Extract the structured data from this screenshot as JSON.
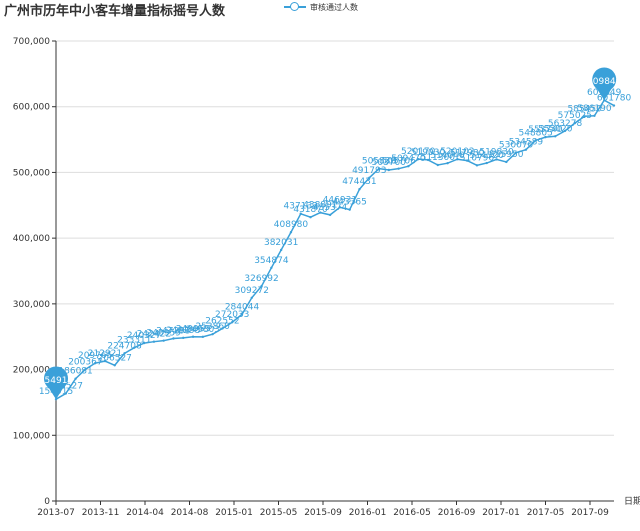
{
  "title": "广州市历年中小客车增量指标摇号人数",
  "legend": {
    "label": "审核通过人数"
  },
  "colors": {
    "series": "#3aa0d9",
    "axis": "#333333",
    "grid": "#dddddd",
    "text": "#333333"
  },
  "chart_data": {
    "type": "line",
    "title": "广州市历年中小客车增量指标摇号人数",
    "xlabel": "日期",
    "ylabel": "",
    "ylim": [
      0,
      700000
    ],
    "yticks": [
      "0",
      "100,000",
      "200,000",
      "300,000",
      "400,000",
      "500,000",
      "600,000",
      "700,000"
    ],
    "xticks": [
      "2013-07",
      "2013-11",
      "2014-04",
      "2014-08",
      "2015-01",
      "2015-05",
      "2015-09",
      "2016-01",
      "2016-05",
      "2016-09",
      "2017-01",
      "2017-05",
      "2017-09"
    ],
    "grid": true,
    "legend_position": "top",
    "series": [
      {
        "name": "审核通过人数",
        "values": [
          154915,
          163527,
          186081,
          200367,
          209765,
          212921,
          206527,
          224708,
          233311,
          240327,
          242422,
          243959,
          247293,
          248293,
          249953,
          249803,
          253860,
          262552,
          272033,
          284044,
          309272,
          326992,
          354874,
          382031,
          408980,
          437133,
          431870,
          438891,
          435374,
          446931,
          443365,
          474431,
          491793,
          505830,
          503700,
          505706,
          509470,
          520170,
          519030,
          511300,
          514040,
          520102,
          517980,
          510796,
          514320,
          519830,
          515950,
          530070,
          534589,
          548805,
          553740,
          555020,
          563278,
          575025,
          585450,
          586190,
          609849,
          601780
        ]
      }
    ],
    "markers": [
      {
        "type": "min",
        "label": "154915"
      },
      {
        "type": "max",
        "label": "609849"
      }
    ]
  }
}
